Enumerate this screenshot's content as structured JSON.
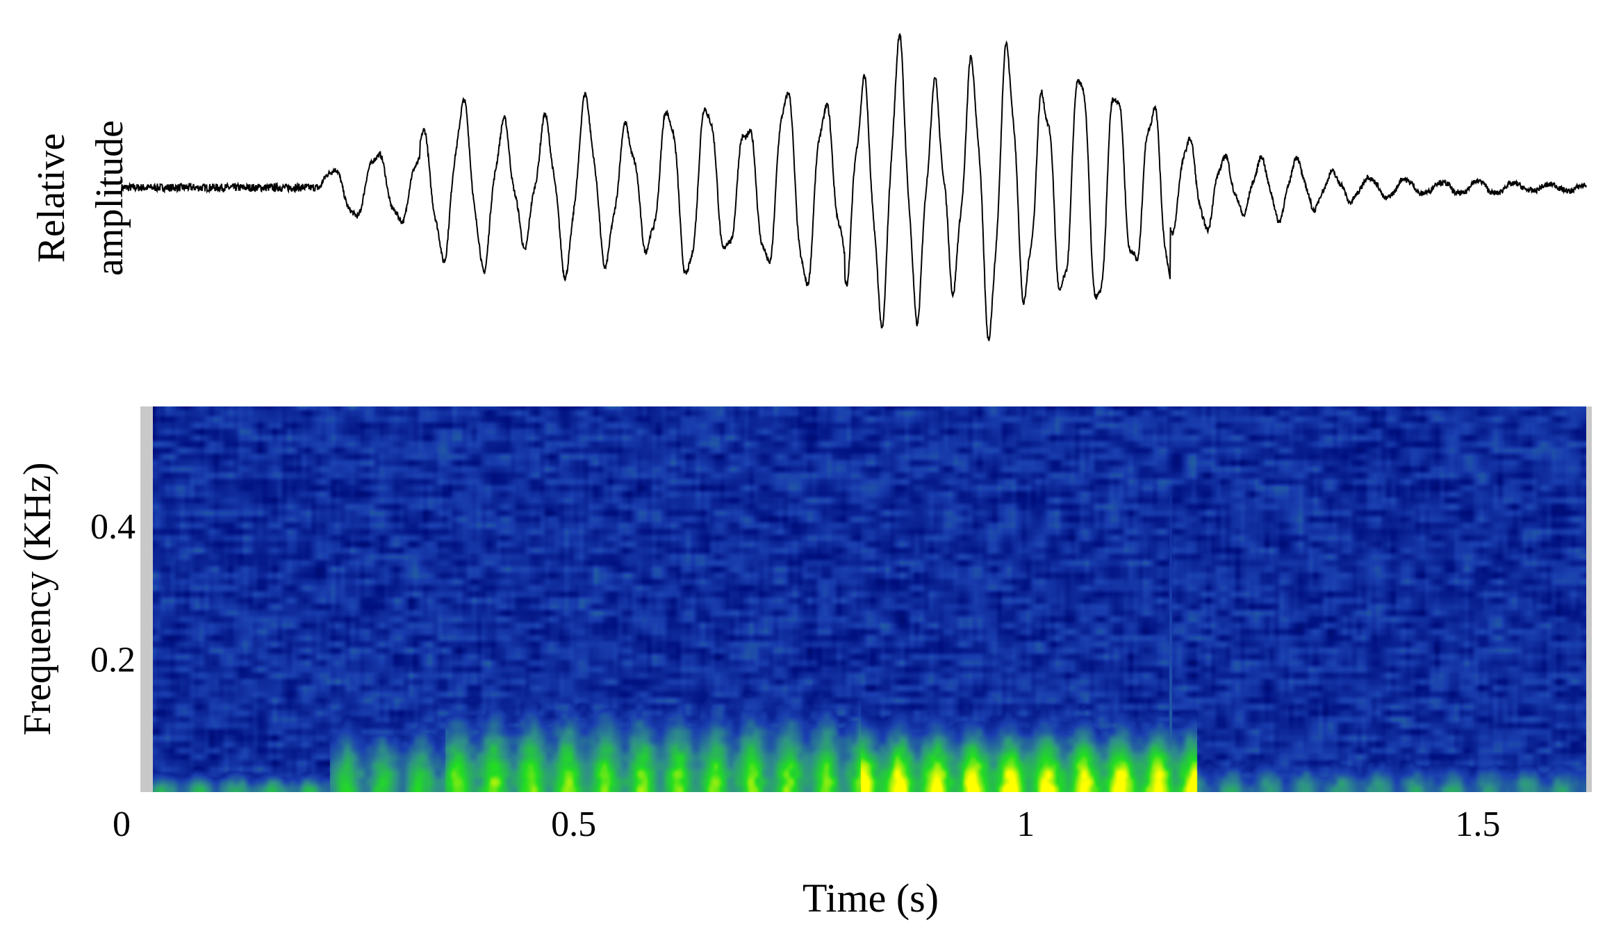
{
  "chart_data": [
    {
      "type": "line",
      "panel": "waveform",
      "ylabel_lines": [
        "Relative",
        "amplitude"
      ],
      "xlim": [
        0,
        1.62
      ],
      "ylim": [
        -1,
        1
      ],
      "segments": [
        {
          "t0": 0.0,
          "t1": 0.22,
          "f": 0,
          "a0": 0.03,
          "a1": 0.03
        },
        {
          "t0": 0.22,
          "t1": 0.33,
          "f": 20,
          "a0": 0.1,
          "a1": 0.4
        },
        {
          "t0": 0.33,
          "t1": 0.6,
          "f": 22,
          "a0": 0.55,
          "a1": 0.62
        },
        {
          "t0": 0.6,
          "t1": 0.8,
          "f": 23,
          "a0": 0.6,
          "a1": 0.72
        },
        {
          "t0": 0.8,
          "t1": 1.05,
          "f": 25,
          "a0": 0.95,
          "a1": 1.0
        },
        {
          "t0": 1.05,
          "t1": 1.16,
          "f": 25,
          "a0": 0.85,
          "a1": 0.8
        },
        {
          "t0": 1.16,
          "t1": 1.37,
          "f": 25,
          "a0": 0.35,
          "a1": 0.12
        },
        {
          "t0": 1.37,
          "t1": 1.62,
          "f": 25,
          "a0": 0.08,
          "a1": 0.02
        }
      ]
    },
    {
      "type": "heatmap",
      "panel": "spectrogram",
      "ylabel": "Frequency (KHz)",
      "xlabel": "Time (s)",
      "xlim": [
        0,
        1.62
      ],
      "ylim": [
        0,
        0.58
      ],
      "xticks": [
        {
          "value": 0,
          "label": "0"
        },
        {
          "value": 0.5,
          "label": "0.5"
        },
        {
          "value": 1,
          "label": "1"
        },
        {
          "value": 1.5,
          "label": "1.5"
        }
      ],
      "yticks": [
        {
          "value": 0.2,
          "label": "0.2"
        },
        {
          "value": 0.4,
          "label": "0.4"
        }
      ],
      "colormap": [
        "#000000",
        "#001080",
        "#1a3fb0",
        "#2f8f8a",
        "#22dd22",
        "#ffff00"
      ],
      "colormap_anchors": [
        0.0,
        0.22,
        0.4,
        0.6,
        0.82,
        1.0
      ],
      "energy_regions": [
        {
          "t0": 0.0,
          "t1": 0.2,
          "f_max": 0.04,
          "intensity": 0.65
        },
        {
          "t0": 0.2,
          "t1": 0.33,
          "f_max": 0.13,
          "intensity": 0.75
        },
        {
          "t0": 0.33,
          "t1": 0.8,
          "f_max": 0.16,
          "intensity": 0.85
        },
        {
          "t0": 0.8,
          "t1": 1.18,
          "f_max": 0.13,
          "intensity": 1.0
        },
        {
          "t0": 1.18,
          "t1": 1.62,
          "f_max": 0.06,
          "intensity": 0.6
        }
      ],
      "streaks": [
        {
          "t": 1.15,
          "f_max": 0.45,
          "intensity": 0.55
        }
      ]
    }
  ]
}
